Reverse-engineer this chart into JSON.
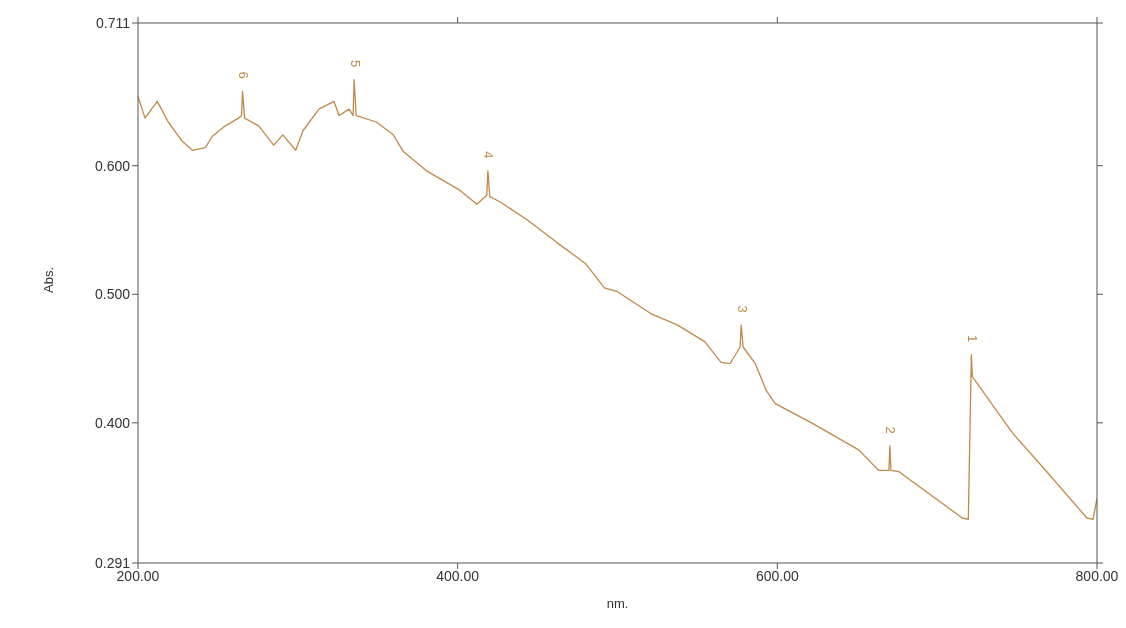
{
  "chart_data": {
    "type": "line",
    "xlabel": "nm.",
    "ylabel": "Abs.",
    "x": [
      200,
      204.4,
      212,
      215.1,
      218.9,
      227.7,
      234,
      242.1,
      246.5,
      254.7,
      262.9,
      264.8,
      265.4,
      266.7,
      275.5,
      284.9,
      290.6,
      298.7,
      303.1,
      313.2,
      322.6,
      325.8,
      332.1,
      334.6,
      335.2,
      336.5,
      349.1,
      359.7,
      366,
      380.5,
      401.3,
      412,
      418.2,
      418.9,
      420.1,
      426.4,
      443.4,
      462.3,
      479.9,
      491.8,
      500,
      520.8,
      537.7,
      554.7,
      564.8,
      570.4,
      576.7,
      577.4,
      578.6,
      586.2,
      593.1,
      598.7,
      621.4,
      650.9,
      663.5,
      669.8,
      670.4,
      671.1,
      676.1,
      715.7,
      719.5,
      721.4,
      722,
      747.2,
      768.6,
      793.7,
      797.5,
      800
    ],
    "series": [
      {
        "color": "#c08a4a",
        "values": [
          0.654,
          0.637,
          0.65,
          0.643,
          0.634,
          0.619,
          0.612,
          0.614,
          0.623,
          0.631,
          0.637,
          0.639,
          0.658,
          0.637,
          0.631,
          0.616,
          0.624,
          0.612,
          0.627,
          0.644,
          0.65,
          0.639,
          0.644,
          0.639,
          0.667,
          0.639,
          0.634,
          0.624,
          0.611,
          0.596,
          0.581,
          0.57,
          0.577,
          0.596,
          0.576,
          0.572,
          0.558,
          0.54,
          0.524,
          0.505,
          0.502,
          0.485,
          0.476,
          0.463,
          0.447,
          0.446,
          0.459,
          0.476,
          0.459,
          0.446,
          0.425,
          0.415,
          0.4,
          0.379,
          0.363,
          0.363,
          0.382,
          0.363,
          0.362,
          0.326,
          0.325,
          0.453,
          0.436,
          0.392,
          0.362,
          0.326,
          0.325,
          0.341
        ]
      }
    ],
    "xlim": [
      200,
      800
    ],
    "xticks": [
      {
        "value": 200,
        "label": "200.00"
      },
      {
        "value": 400,
        "label": "400.00"
      },
      {
        "value": 600,
        "label": "600.00"
      },
      {
        "value": 800,
        "label": "800.00"
      }
    ],
    "ylim": [
      0.291,
      0.711
    ],
    "yticks": [
      0.291,
      {
        "value": 0.4,
        "label": "0.400"
      },
      {
        "value": 0.5,
        "label": "0.500"
      },
      {
        "value": 0.6,
        "label": "0.600"
      },
      0.711
    ],
    "annotations": [
      {
        "text": "1",
        "x": 721.4,
        "y": 0.453
      },
      {
        "text": "2",
        "x": 670.4,
        "y": 0.382
      },
      {
        "text": "3",
        "x": 577.4,
        "y": 0.476
      },
      {
        "text": "4",
        "x": 418.9,
        "y": 0.596
      },
      {
        "text": "5",
        "x": 335.2,
        "y": 0.667
      },
      {
        "text": "6",
        "x": 265.4,
        "y": 0.658
      }
    ],
    "grid": false,
    "legend": false,
    "marker": "none",
    "line_style": "solid"
  }
}
